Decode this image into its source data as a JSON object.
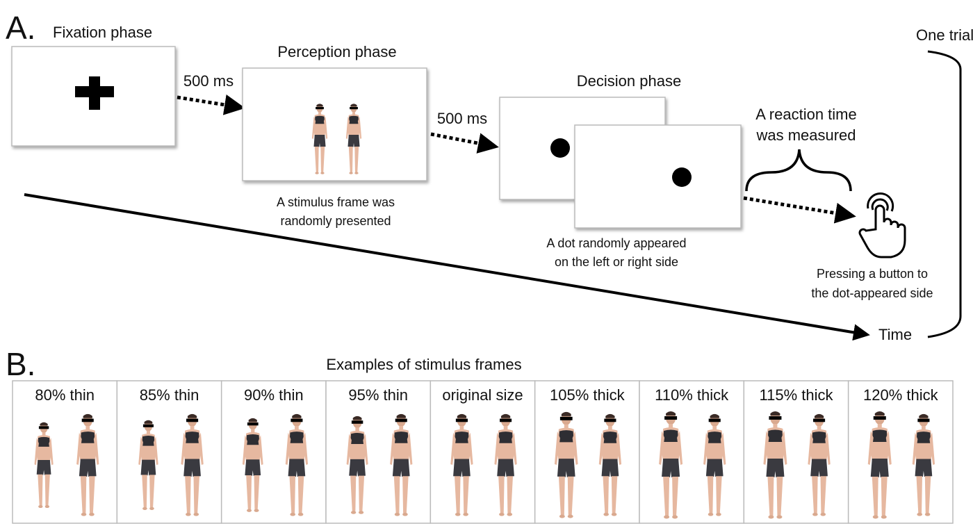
{
  "panel_a": {
    "label": "A.",
    "fixation": {
      "title": "Fixation phase"
    },
    "delay1": "500 ms",
    "perception": {
      "title": "Perception phase",
      "caption": [
        "A stimulus frame was",
        "randomly presented"
      ]
    },
    "delay2": "500 ms",
    "decision": {
      "title": "Decision phase",
      "caption": [
        "A dot randomly appeared",
        "on the left or right side"
      ]
    },
    "reaction": [
      "A reaction time",
      "was measured"
    ],
    "response": [
      "Pressing a button to",
      "the dot-appeared side"
    ],
    "trial": "One trial",
    "time": "Time"
  },
  "panel_b": {
    "label": "B.",
    "title": "Examples of stimulus frames",
    "frames": [
      "80% thin",
      "85% thin",
      "90% thin",
      "95% thin",
      "original size",
      "105% thick",
      "110% thick",
      "115% thick",
      "120% thick"
    ]
  }
}
